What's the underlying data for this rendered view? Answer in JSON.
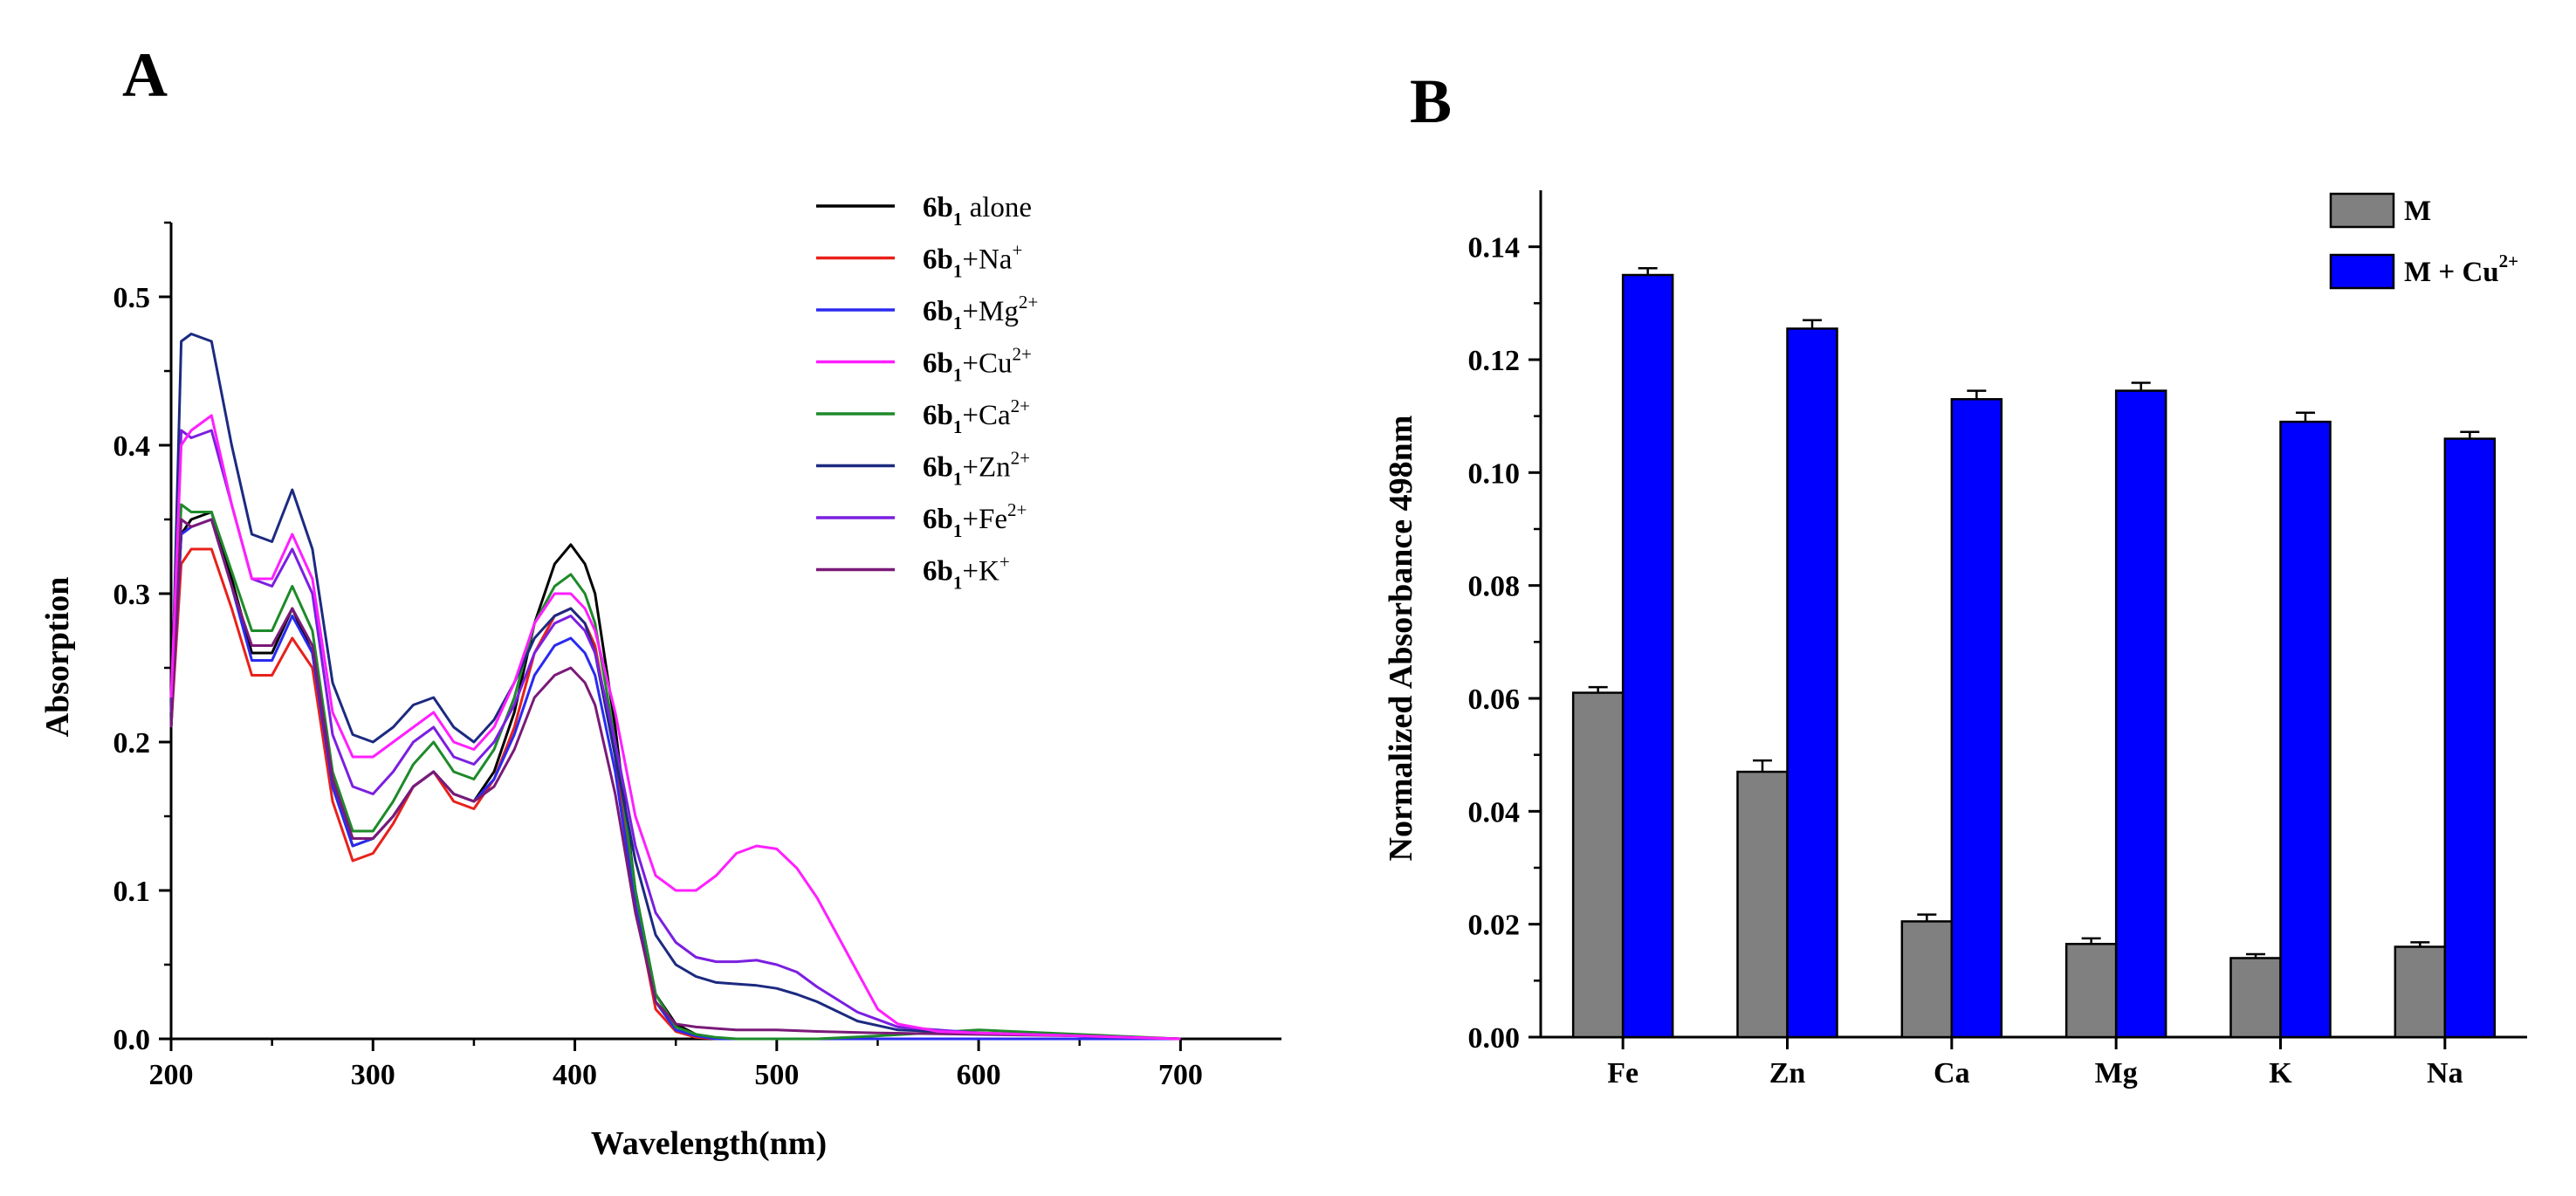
{
  "chart_data": [
    {
      "panel": "A",
      "type": "line",
      "xlabel": "Wavelength(nm)",
      "ylabel": "Absorption",
      "xlim": [
        200,
        750
      ],
      "ylim": [
        0,
        0.55
      ],
      "xticks": [
        200,
        300,
        400,
        500,
        600,
        700
      ],
      "yticks": [
        0.0,
        0.1,
        0.2,
        0.3,
        0.4,
        0.5
      ],
      "xtick_labels": [
        "200",
        "300",
        "400",
        "500",
        "600",
        "700"
      ],
      "ytick_labels": [
        "0.0",
        "0.1",
        "0.2",
        "0.3",
        "0.4",
        "0.5"
      ],
      "legend_position": "top-right",
      "series": [
        {
          "compound": "6b",
          "subscript": "1",
          "suffix": " alone",
          "ion": "",
          "charge": "",
          "color": "#000000",
          "x": [
            200,
            205,
            210,
            220,
            230,
            240,
            250,
            260,
            270,
            280,
            290,
            300,
            310,
            320,
            330,
            340,
            350,
            360,
            370,
            380,
            390,
            398,
            405,
            410,
            420,
            430,
            440,
            450,
            460,
            470,
            480,
            490,
            500,
            520,
            550,
            600,
            650,
            700
          ],
          "y": [
            0.21,
            0.34,
            0.35,
            0.355,
            0.31,
            0.26,
            0.26,
            0.29,
            0.26,
            0.17,
            0.13,
            0.135,
            0.15,
            0.17,
            0.18,
            0.165,
            0.16,
            0.18,
            0.22,
            0.28,
            0.32,
            0.333,
            0.32,
            0.3,
            0.21,
            0.1,
            0.03,
            0.01,
            0.003,
            0.0,
            0.0,
            0.0,
            0.0,
            0.0,
            0.0,
            0.0,
            0.0,
            0.0
          ]
        },
        {
          "compound": "6b",
          "subscript": "1",
          "suffix": "",
          "ion": "+Na",
          "charge": "+",
          "color": "#e8211b",
          "x": [
            200,
            205,
            210,
            220,
            230,
            240,
            250,
            260,
            270,
            280,
            290,
            300,
            310,
            320,
            330,
            340,
            350,
            360,
            370,
            380,
            390,
            398,
            405,
            410,
            420,
            430,
            440,
            450,
            460,
            470,
            480,
            490,
            500,
            520,
            550,
            600,
            650,
            700
          ],
          "y": [
            0.21,
            0.32,
            0.33,
            0.33,
            0.29,
            0.245,
            0.245,
            0.27,
            0.25,
            0.16,
            0.12,
            0.125,
            0.145,
            0.17,
            0.18,
            0.16,
            0.155,
            0.175,
            0.21,
            0.26,
            0.285,
            0.29,
            0.28,
            0.265,
            0.19,
            0.09,
            0.02,
            0.005,
            0.001,
            0.0,
            0.0,
            0.0,
            0.0,
            0.0,
            0.0,
            0.0,
            0.0,
            0.0
          ]
        },
        {
          "compound": "6b",
          "subscript": "1",
          "suffix": "",
          "ion": "+Mg",
          "charge": "2+",
          "color": "#2a2af0",
          "x": [
            200,
            205,
            210,
            220,
            230,
            240,
            250,
            260,
            270,
            280,
            290,
            300,
            310,
            320,
            330,
            340,
            350,
            360,
            370,
            380,
            390,
            398,
            405,
            410,
            420,
            430,
            440,
            450,
            460,
            470,
            480,
            490,
            500,
            520,
            550,
            600,
            650,
            700
          ],
          "y": [
            0.21,
            0.34,
            0.345,
            0.35,
            0.305,
            0.255,
            0.255,
            0.285,
            0.26,
            0.17,
            0.13,
            0.135,
            0.15,
            0.17,
            0.18,
            0.165,
            0.16,
            0.175,
            0.205,
            0.245,
            0.265,
            0.27,
            0.26,
            0.245,
            0.18,
            0.09,
            0.025,
            0.006,
            0.002,
            0.0,
            0.0,
            0.0,
            0.0,
            0.0,
            0.0,
            0.0,
            0.0,
            0.0
          ]
        },
        {
          "compound": "6b",
          "subscript": "1",
          "suffix": "",
          "ion": "+Cu",
          "charge": "2+",
          "color": "#ff1fff",
          "x": [
            200,
            205,
            210,
            220,
            230,
            240,
            250,
            260,
            270,
            280,
            290,
            300,
            310,
            320,
            330,
            340,
            350,
            360,
            370,
            380,
            390,
            398,
            405,
            410,
            420,
            430,
            440,
            450,
            460,
            470,
            480,
            490,
            500,
            510,
            520,
            530,
            540,
            550,
            560,
            580,
            600,
            650,
            700
          ],
          "y": [
            0.23,
            0.4,
            0.41,
            0.42,
            0.36,
            0.31,
            0.31,
            0.34,
            0.31,
            0.22,
            0.19,
            0.19,
            0.2,
            0.21,
            0.22,
            0.2,
            0.195,
            0.21,
            0.24,
            0.28,
            0.3,
            0.3,
            0.29,
            0.275,
            0.22,
            0.15,
            0.11,
            0.1,
            0.1,
            0.11,
            0.125,
            0.13,
            0.128,
            0.115,
            0.095,
            0.07,
            0.045,
            0.02,
            0.01,
            0.005,
            0.004,
            0.002,
            0.0
          ]
        },
        {
          "compound": "6b",
          "subscript": "1",
          "suffix": "",
          "ion": "+Ca",
          "charge": "2+",
          "color": "#1e8a2a",
          "x": [
            200,
            205,
            210,
            220,
            230,
            240,
            250,
            260,
            270,
            280,
            290,
            300,
            310,
            320,
            330,
            340,
            350,
            360,
            370,
            380,
            390,
            398,
            405,
            410,
            420,
            430,
            440,
            450,
            460,
            470,
            480,
            490,
            500,
            520,
            550,
            600,
            650,
            700
          ],
          "y": [
            0.21,
            0.36,
            0.355,
            0.355,
            0.315,
            0.275,
            0.275,
            0.305,
            0.275,
            0.18,
            0.14,
            0.14,
            0.16,
            0.185,
            0.2,
            0.18,
            0.175,
            0.195,
            0.23,
            0.28,
            0.305,
            0.313,
            0.3,
            0.28,
            0.2,
            0.1,
            0.03,
            0.008,
            0.003,
            0.001,
            0.0,
            0.0,
            0.0,
            0.0,
            0.002,
            0.006,
            0.003,
            0.0
          ]
        },
        {
          "compound": "6b",
          "subscript": "1",
          "suffix": "",
          "ion": "+Zn",
          "charge": "2+",
          "color": "#1c2a80",
          "x": [
            200,
            205,
            210,
            220,
            230,
            240,
            250,
            260,
            270,
            280,
            290,
            300,
            310,
            320,
            330,
            340,
            350,
            360,
            370,
            380,
            390,
            398,
            405,
            410,
            420,
            430,
            440,
            450,
            460,
            470,
            480,
            490,
            500,
            510,
            520,
            540,
            560,
            600,
            650,
            700
          ],
          "y": [
            0.21,
            0.47,
            0.475,
            0.47,
            0.4,
            0.34,
            0.335,
            0.37,
            0.33,
            0.24,
            0.205,
            0.2,
            0.21,
            0.225,
            0.23,
            0.21,
            0.2,
            0.215,
            0.24,
            0.27,
            0.285,
            0.29,
            0.28,
            0.26,
            0.19,
            0.12,
            0.07,
            0.05,
            0.042,
            0.038,
            0.037,
            0.036,
            0.034,
            0.03,
            0.025,
            0.012,
            0.006,
            0.004,
            0.002,
            0.0
          ]
        },
        {
          "compound": "6b",
          "subscript": "1",
          "suffix": "",
          "ion": "+Fe",
          "charge": "2+",
          "color": "#7b1fe0",
          "x": [
            200,
            205,
            210,
            220,
            230,
            240,
            250,
            260,
            270,
            280,
            290,
            300,
            310,
            320,
            330,
            340,
            350,
            360,
            370,
            380,
            390,
            398,
            405,
            410,
            420,
            430,
            440,
            450,
            460,
            470,
            480,
            490,
            500,
            510,
            520,
            540,
            560,
            600,
            650,
            700
          ],
          "y": [
            0.22,
            0.41,
            0.405,
            0.41,
            0.36,
            0.31,
            0.305,
            0.33,
            0.3,
            0.205,
            0.17,
            0.165,
            0.18,
            0.2,
            0.21,
            0.19,
            0.185,
            0.2,
            0.225,
            0.26,
            0.28,
            0.285,
            0.275,
            0.26,
            0.2,
            0.13,
            0.085,
            0.065,
            0.055,
            0.052,
            0.052,
            0.053,
            0.05,
            0.045,
            0.035,
            0.018,
            0.008,
            0.004,
            0.002,
            0.0
          ]
        },
        {
          "compound": "6b",
          "subscript": "1",
          "suffix": "",
          "ion": "+K",
          "charge": "+",
          "color": "#7a1a78",
          "x": [
            200,
            205,
            210,
            220,
            230,
            240,
            250,
            260,
            270,
            280,
            290,
            300,
            310,
            320,
            330,
            340,
            350,
            360,
            370,
            380,
            390,
            398,
            405,
            410,
            420,
            430,
            440,
            450,
            460,
            470,
            480,
            490,
            500,
            520,
            550,
            600,
            650,
            700
          ],
          "y": [
            0.21,
            0.35,
            0.345,
            0.35,
            0.305,
            0.265,
            0.265,
            0.29,
            0.265,
            0.175,
            0.135,
            0.135,
            0.15,
            0.17,
            0.18,
            0.165,
            0.16,
            0.17,
            0.195,
            0.23,
            0.245,
            0.25,
            0.24,
            0.225,
            0.165,
            0.085,
            0.025,
            0.01,
            0.008,
            0.007,
            0.006,
            0.006,
            0.006,
            0.005,
            0.004,
            0.003,
            0.002,
            0.0
          ]
        }
      ]
    },
    {
      "panel": "B",
      "type": "bar",
      "xlabel": "",
      "ylabel": "Normalized Absorbance 498nm",
      "ylim": [
        0,
        0.15
      ],
      "yticks": [
        0.0,
        0.02,
        0.04,
        0.06,
        0.08,
        0.1,
        0.12,
        0.14
      ],
      "ytick_labels": [
        "0.00",
        "0.02",
        "0.04",
        "0.06",
        "0.08",
        "0.10",
        "0.12",
        "0.14"
      ],
      "categories": [
        "Fe",
        "Zn",
        "Ca",
        "Mg",
        "K",
        "Na"
      ],
      "legend_position": "top-right",
      "series": [
        {
          "name": "M",
          "name_sup": "",
          "color": "#808080",
          "values": [
            0.061,
            0.047,
            0.0205,
            0.0165,
            0.014,
            0.016
          ],
          "errors": [
            0.001,
            0.002,
            0.0012,
            0.001,
            0.0007,
            0.0008
          ]
        },
        {
          "name": "M + Cu",
          "name_sup": "2+",
          "color": "#0000ff",
          "values": [
            0.135,
            0.1255,
            0.113,
            0.1145,
            0.109,
            0.106
          ],
          "errors": [
            0.0012,
            0.0015,
            0.0015,
            0.0014,
            0.0016,
            0.0012
          ]
        }
      ]
    }
  ]
}
